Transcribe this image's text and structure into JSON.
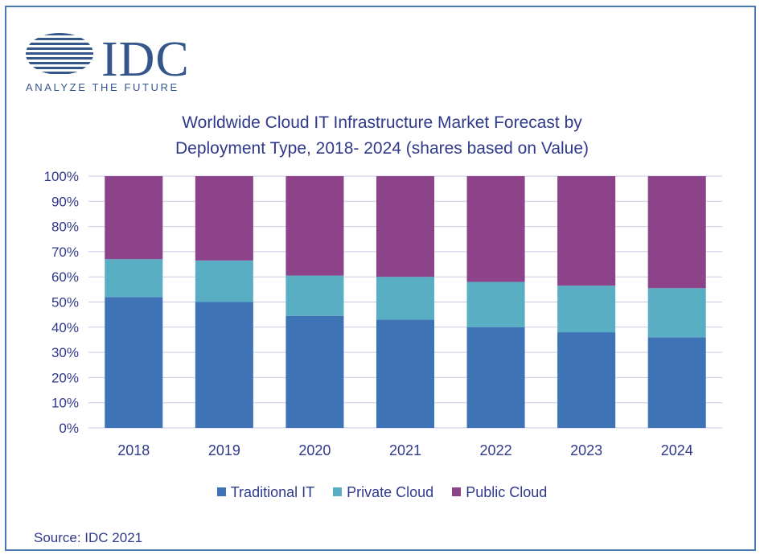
{
  "logo": {
    "text": "IDC",
    "tagline": "ANALYZE THE FUTURE"
  },
  "colors": {
    "frame": "#4a78b4",
    "text": "#2f3a8c",
    "grid": "#c9c9e6",
    "traditional": "#3e74b6",
    "private": "#5aaec4",
    "public": "#8c4389"
  },
  "chart_data": {
    "type": "bar",
    "stacked": true,
    "title": "Worldwide Cloud IT Infrastructure Market Forecast by Deployment Type, 2018- 2024 (shares based on Value)",
    "title_lines": [
      "Worldwide Cloud IT Infrastructure Market Forecast by",
      "Deployment Type, 2018- 2024 (shares based on Value)"
    ],
    "categories": [
      "2018",
      "2019",
      "2020",
      "2021",
      "2022",
      "2023",
      "2024"
    ],
    "series": [
      {
        "name": "Traditional IT",
        "color": "#3e74b6",
        "values": [
          52,
          50,
          44.5,
          43,
          40,
          38,
          36
        ]
      },
      {
        "name": "Private Cloud",
        "color": "#5aaec4",
        "values": [
          15,
          16.5,
          16,
          17,
          18,
          18.5,
          19.5
        ]
      },
      {
        "name": "Public Cloud",
        "color": "#8c4389",
        "values": [
          33,
          33.5,
          39.5,
          40,
          42,
          43.5,
          44.5
        ]
      }
    ],
    "ylim": [
      0,
      100
    ],
    "yticks": [
      "0%",
      "10%",
      "20%",
      "30%",
      "40%",
      "50%",
      "60%",
      "70%",
      "80%",
      "90%",
      "100%"
    ],
    "grid": true,
    "legend_position": "bottom"
  },
  "source": "Source: IDC 2021"
}
